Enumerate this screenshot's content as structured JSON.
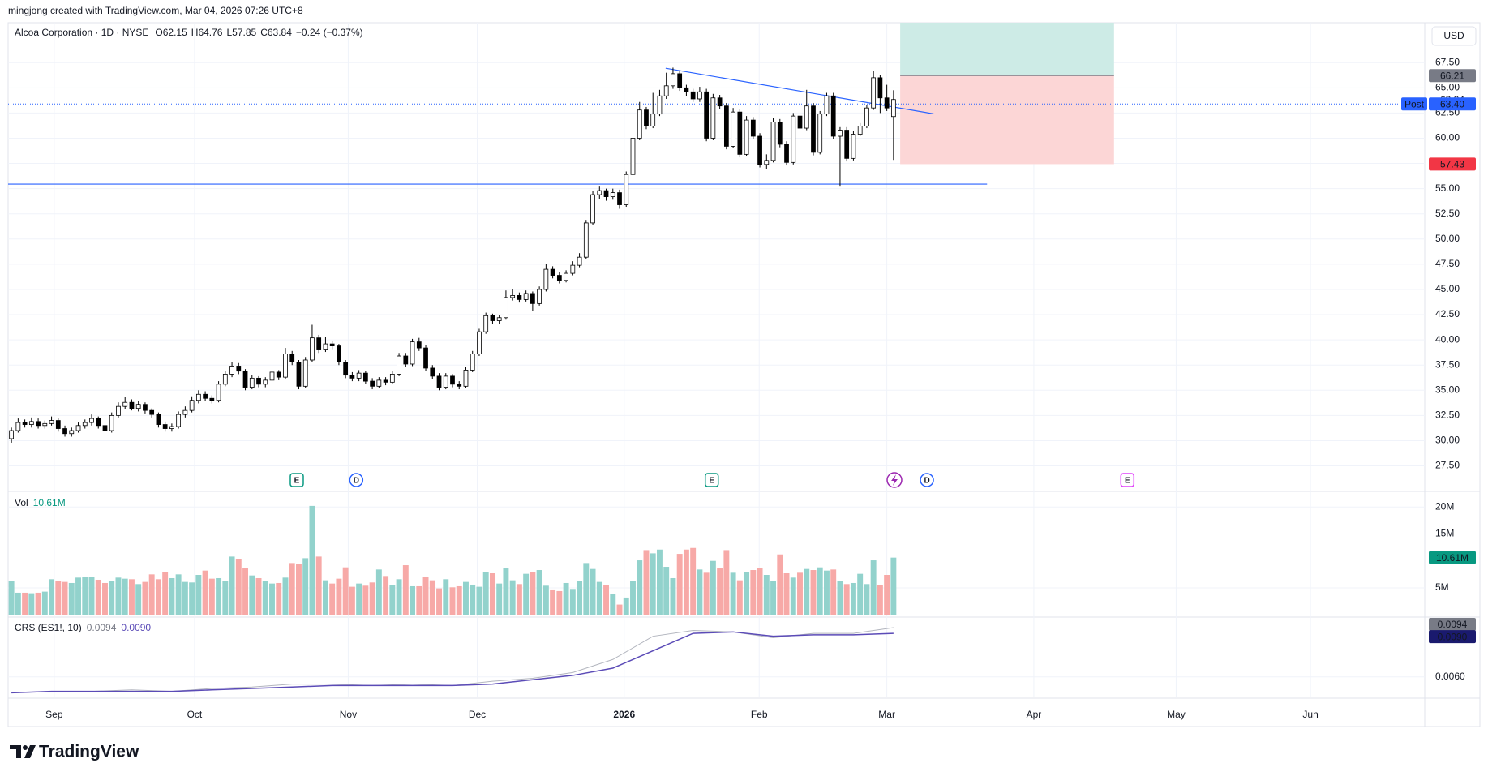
{
  "header": "mingjong created with TradingView.com, Mar 04, 2026 07:26 UTC+8",
  "logo": "TradingView",
  "chart_data": {
    "type": "candlestick",
    "symbol": "Alcoa Corporation · 1D · NYSE",
    "ohlc_prefixes": [
      "O",
      "H",
      "L",
      "C"
    ],
    "change": "−0.24 (−0.37%)",
    "currency": "USD",
    "up_color": "#ffffff",
    "down_color": "#000000",
    "wick_color": "#000000",
    "candles": [
      [
        30.2,
        31.3,
        29.8,
        31.0
      ],
      [
        31.0,
        32.2,
        30.8,
        31.8
      ],
      [
        31.8,
        32.1,
        31.3,
        31.6
      ],
      [
        31.6,
        32.3,
        31.3,
        31.9
      ],
      [
        31.9,
        32.2,
        31.2,
        31.5
      ],
      [
        31.5,
        32.0,
        31.2,
        31.7
      ],
      [
        31.7,
        32.4,
        31.5,
        32.0
      ],
      [
        32.0,
        32.2,
        30.9,
        31.2
      ],
      [
        31.2,
        31.5,
        30.4,
        30.7
      ],
      [
        30.7,
        31.3,
        30.4,
        31.0
      ],
      [
        31.0,
        31.8,
        30.8,
        31.5
      ],
      [
        31.5,
        32.1,
        31.2,
        31.8
      ],
      [
        31.8,
        32.6,
        31.5,
        32.2
      ],
      [
        32.2,
        32.4,
        31.2,
        31.5
      ],
      [
        31.5,
        31.7,
        30.7,
        31.0
      ],
      [
        31.0,
        32.8,
        30.8,
        32.5
      ],
      [
        32.5,
        33.8,
        32.3,
        33.4
      ],
      [
        33.4,
        34.3,
        33.1,
        33.8
      ],
      [
        33.8,
        34.1,
        33.0,
        33.2
      ],
      [
        33.2,
        33.9,
        32.9,
        33.6
      ],
      [
        33.6,
        33.8,
        32.7,
        33.0
      ],
      [
        33.0,
        33.2,
        32.3,
        32.6
      ],
      [
        32.6,
        32.8,
        31.3,
        31.6
      ],
      [
        31.6,
        31.9,
        30.9,
        31.2
      ],
      [
        31.2,
        31.7,
        30.9,
        31.4
      ],
      [
        31.4,
        32.9,
        31.2,
        32.6
      ],
      [
        32.6,
        33.4,
        32.3,
        33.0
      ],
      [
        33.0,
        34.4,
        32.8,
        34.0
      ],
      [
        34.0,
        35.0,
        33.7,
        34.6
      ],
      [
        34.6,
        34.9,
        33.9,
        34.2
      ],
      [
        34.2,
        34.5,
        33.7,
        34.0
      ],
      [
        34.0,
        35.9,
        33.8,
        35.6
      ],
      [
        35.6,
        36.9,
        35.4,
        36.6
      ],
      [
        36.6,
        37.8,
        36.3,
        37.4
      ],
      [
        37.4,
        37.7,
        36.6,
        36.9
      ],
      [
        36.9,
        37.1,
        35.0,
        35.3
      ],
      [
        35.3,
        36.5,
        35.1,
        36.2
      ],
      [
        36.2,
        36.4,
        35.3,
        35.6
      ],
      [
        35.6,
        36.3,
        35.3,
        36.0
      ],
      [
        36.0,
        37.1,
        35.8,
        36.8
      ],
      [
        36.8,
        37.0,
        36.0,
        36.3
      ],
      [
        36.3,
        39.2,
        36.1,
        38.6
      ],
      [
        38.6,
        38.9,
        37.5,
        37.8
      ],
      [
        37.8,
        38.0,
        35.1,
        35.4
      ],
      [
        35.4,
        38.3,
        35.2,
        38.0
      ],
      [
        38.0,
        41.5,
        37.8,
        40.2
      ],
      [
        40.2,
        40.5,
        38.7,
        39.0
      ],
      [
        39.0,
        40.3,
        38.8,
        39.6
      ],
      [
        39.6,
        39.9,
        39.0,
        39.4
      ],
      [
        39.4,
        39.6,
        37.5,
        37.8
      ],
      [
        37.8,
        38.0,
        36.2,
        36.5
      ],
      [
        36.5,
        36.8,
        35.9,
        36.2
      ],
      [
        36.2,
        37.0,
        35.9,
        36.7
      ],
      [
        36.7,
        36.9,
        35.6,
        35.9
      ],
      [
        35.9,
        36.2,
        35.1,
        35.4
      ],
      [
        35.4,
        36.3,
        35.2,
        36.0
      ],
      [
        36.0,
        36.3,
        35.5,
        35.8
      ],
      [
        35.8,
        36.9,
        35.6,
        36.6
      ],
      [
        36.6,
        38.7,
        36.4,
        38.4
      ],
      [
        38.4,
        38.7,
        37.3,
        37.6
      ],
      [
        37.6,
        40.1,
        37.4,
        39.8
      ],
      [
        39.8,
        40.2,
        38.9,
        39.2
      ],
      [
        39.2,
        39.5,
        36.9,
        37.2
      ],
      [
        37.2,
        37.5,
        36.1,
        36.4
      ],
      [
        36.4,
        36.7,
        35.0,
        35.3
      ],
      [
        35.3,
        36.7,
        35.1,
        36.4
      ],
      [
        36.4,
        36.6,
        35.3,
        35.6
      ],
      [
        35.6,
        35.9,
        35.1,
        35.4
      ],
      [
        35.4,
        37.3,
        35.2,
        37.0
      ],
      [
        37.0,
        38.9,
        36.8,
        38.6
      ],
      [
        38.6,
        41.1,
        38.4,
        40.8
      ],
      [
        40.8,
        42.7,
        40.6,
        42.4
      ],
      [
        42.4,
        42.6,
        41.6,
        41.9
      ],
      [
        41.9,
        42.5,
        41.6,
        42.2
      ],
      [
        42.2,
        44.9,
        42.0,
        44.2
      ],
      [
        44.2,
        45.0,
        43.9,
        44.4
      ],
      [
        44.4,
        44.7,
        43.7,
        44.0
      ],
      [
        44.0,
        44.9,
        43.8,
        44.6
      ],
      [
        44.6,
        44.8,
        42.9,
        43.6
      ],
      [
        43.6,
        45.3,
        43.4,
        45.0
      ],
      [
        45.0,
        47.5,
        44.8,
        47.0
      ],
      [
        47.0,
        47.3,
        46.1,
        46.4
      ],
      [
        46.4,
        46.7,
        45.6,
        45.9
      ],
      [
        45.9,
        46.9,
        45.7,
        46.6
      ],
      [
        46.6,
        47.8,
        46.4,
        47.4
      ],
      [
        47.4,
        48.6,
        47.2,
        48.2
      ],
      [
        48.2,
        51.9,
        48.0,
        51.6
      ],
      [
        51.6,
        54.8,
        51.4,
        54.4
      ],
      [
        54.4,
        55.2,
        54.0,
        54.8
      ],
      [
        54.8,
        55.0,
        53.8,
        54.2
      ],
      [
        54.2,
        55.0,
        53.9,
        54.6
      ],
      [
        54.6,
        54.9,
        53.0,
        53.4
      ],
      [
        53.4,
        56.7,
        53.2,
        56.4
      ],
      [
        56.4,
        60.3,
        56.2,
        60.0
      ],
      [
        60.0,
        63.6,
        59.8,
        62.8
      ],
      [
        62.8,
        63.1,
        60.9,
        61.2
      ],
      [
        61.2,
        64.5,
        61.0,
        62.4
      ],
      [
        62.4,
        64.8,
        62.2,
        64.2
      ],
      [
        64.2,
        66.5,
        63.9,
        65.2
      ],
      [
        65.2,
        67.0,
        64.9,
        66.4
      ],
      [
        66.4,
        66.7,
        64.7,
        65.0
      ],
      [
        65.0,
        65.3,
        64.2,
        64.6
      ],
      [
        64.6,
        64.9,
        63.6,
        63.9
      ],
      [
        63.9,
        65.1,
        63.6,
        64.6
      ],
      [
        64.6,
        64.9,
        59.7,
        60.0
      ],
      [
        60.0,
        64.4,
        59.8,
        64.0
      ],
      [
        64.0,
        64.3,
        62.9,
        63.2
      ],
      [
        63.2,
        63.5,
        58.9,
        59.2
      ],
      [
        59.2,
        63.0,
        59.0,
        62.6
      ],
      [
        62.6,
        62.9,
        58.1,
        58.4
      ],
      [
        58.4,
        62.2,
        58.2,
        61.8
      ],
      [
        61.8,
        62.1,
        59.9,
        60.2
      ],
      [
        60.2,
        60.5,
        57.1,
        57.4
      ],
      [
        57.4,
        58.4,
        56.9,
        57.8
      ],
      [
        57.8,
        62.0,
        57.6,
        61.6
      ],
      [
        61.6,
        61.9,
        59.1,
        59.4
      ],
      [
        59.4,
        59.7,
        57.3,
        57.6
      ],
      [
        57.6,
        62.5,
        57.4,
        62.2
      ],
      [
        62.2,
        62.5,
        60.7,
        61.0
      ],
      [
        61.0,
        64.8,
        60.8,
        63.2
      ],
      [
        63.2,
        63.5,
        58.3,
        58.6
      ],
      [
        58.6,
        62.7,
        58.4,
        62.4
      ],
      [
        62.4,
        64.5,
        62.2,
        64.2
      ],
      [
        64.2,
        64.5,
        59.9,
        60.2
      ],
      [
        60.2,
        61.1,
        55.2,
        60.8
      ],
      [
        60.8,
        61.1,
        57.7,
        58.0
      ],
      [
        58.0,
        60.7,
        57.8,
        60.4
      ],
      [
        60.4,
        61.5,
        60.2,
        61.2
      ],
      [
        61.2,
        63.3,
        61.0,
        63.0
      ],
      [
        63.0,
        66.7,
        62.8,
        66.0
      ],
      [
        66.0,
        66.3,
        62.5,
        64.0
      ],
      [
        64.0,
        65.3,
        62.7,
        63.0
      ],
      [
        62.15,
        64.76,
        57.85,
        63.84
      ]
    ],
    "xlim": [
      -0.5,
      211.5
    ],
    "xticks": [
      {
        "value": 6.4,
        "label": "Sep"
      },
      {
        "value": 27.4,
        "label": "Oct"
      },
      {
        "value": 50.4,
        "label": "Nov"
      },
      {
        "value": 69.7,
        "label": "Dec"
      },
      {
        "value": 91.7,
        "label": "2026"
      },
      {
        "value": 111.9,
        "label": "Feb"
      },
      {
        "value": 131,
        "label": "Mar"
      },
      {
        "value": 153,
        "label": "Apr"
      },
      {
        "value": 174.3,
        "label": "May"
      },
      {
        "value": 194.4,
        "label": "Jun"
      }
    ],
    "ylim": [
      25.05,
      71.46
    ],
    "yticks": [
      {
        "value": 27.5,
        "label": "27.50"
      },
      {
        "value": 30,
        "label": "30.00"
      },
      {
        "value": 32.5,
        "label": "32.50"
      },
      {
        "value": 35,
        "label": "35.00"
      },
      {
        "value": 37.5,
        "label": "37.50"
      },
      {
        "value": 40,
        "label": "40.00"
      },
      {
        "value": 42.5,
        "label": "42.50"
      },
      {
        "value": 45,
        "label": "45.00"
      },
      {
        "value": 47.5,
        "label": "47.50"
      },
      {
        "value": 50,
        "label": "50.00"
      },
      {
        "value": 52.5,
        "label": "52.50"
      },
      {
        "value": 55,
        "label": "55.00"
      },
      {
        "value": 57.5,
        "label": "57.50"
      },
      {
        "value": 60,
        "label": "60.00"
      },
      {
        "value": 62.5,
        "label": "62.50"
      },
      {
        "value": 65,
        "label": "65.00"
      },
      {
        "value": 67.5,
        "label": "67.50"
      }
    ],
    "grid": true,
    "post": {
      "label": "Post",
      "price": {
        "value": 63.4,
        "label": "63.40"
      },
      "color": "#2962ff"
    },
    "position": {
      "entry": 66.21,
      "stop": 57.43,
      "target": 71.6,
      "x": [
        133,
        165
      ],
      "profit_color": "#cdebe6",
      "loss_color": "#fcd6d6",
      "stop_color": "#f23645",
      "entry_color": "#787b86"
    },
    "lines": [
      {
        "x": [
          97.9,
          138
        ],
        "y": [
          66.94,
          62.42
        ],
        "color": "#2962ff"
      },
      {
        "x": [
          -0.5,
          146
        ],
        "y": [
          55.45,
          55.45
        ],
        "color": "#2962ff"
      }
    ],
    "events": [
      {
        "x": 42.7,
        "label": "E",
        "color": "#089981"
      },
      {
        "x": 51.6,
        "label": "D",
        "color": "#2962ff"
      },
      {
        "x": 104.8,
        "label": "E",
        "color": "#089981"
      },
      {
        "x": 137,
        "label": "D",
        "color": "#2962ff"
      },
      {
        "x": 167,
        "label": "E",
        "color": "#e040fb"
      }
    ],
    "volume": {
      "name": "Vol",
      "up_color": "#92d2cc",
      "down_color": "#f7a9a7",
      "last_label": "10.61M",
      "values": [
        6.2,
        4.1,
        4.1,
        4.0,
        4.1,
        4.3,
        6.6,
        6.3,
        6.1,
        5.9,
        6.9,
        7.1,
        7.0,
        6.5,
        5.9,
        6.3,
        6.9,
        6.7,
        6.6,
        5.7,
        6.1,
        7.5,
        6.6,
        7.9,
        6.8,
        7.5,
        6.1,
        6.0,
        7.4,
        8.2,
        6.7,
        6.8,
        6.2,
        10.8,
        10.3,
        8.7,
        7.3,
        6.8,
        6.3,
        5.8,
        5.9,
        6.9,
        9.6,
        9.4,
        10.5,
        20.2,
        10.8,
        6.4,
        5.8,
        6.7,
        8.8,
        5.2,
        5.8,
        5.4,
        6.0,
        8.4,
        7.2,
        5.5,
        6.6,
        9.2,
        5.3,
        5.3,
        7.1,
        6.4,
        4.9,
        6.6,
        5.1,
        5.3,
        6.1,
        5.6,
        5.2,
        8.0,
        7.7,
        5.8,
        8.6,
        6.4,
        5.7,
        7.6,
        8.0,
        8.3,
        5.4,
        4.7,
        4.4,
        5.9,
        4.8,
        6.3,
        9.6,
        8.5,
        6.1,
        5.5,
        3.8,
        1.9,
        3.2,
        6.2,
        10.1,
        12.0,
        11.4,
        12.1,
        8.9,
        6.8,
        11.3,
        12.1,
        12.4,
        8.4,
        7.8,
        10.0,
        8.6,
        12.0,
        7.8,
        6.4,
        7.9,
        8.3,
        8.7,
        7.4,
        6.2,
        11.2,
        7.7,
        6.9,
        7.8,
        8.5,
        8.3,
        8.8,
        8.2,
        8.4,
        6.2,
        5.7,
        5.9,
        7.6,
        5.7,
        10.1,
        5.5,
        7.4,
        10.61
      ],
      "ylim": [
        -0.27,
        22.74
      ],
      "yticks": [
        {
          "value": 5,
          "label": "5M"
        },
        {
          "value": 15,
          "label": "15M"
        },
        {
          "value": 20,
          "label": "20M"
        }
      ]
    },
    "crs": {
      "name": "CRS (ES1!, 10)",
      "x": [
        0,
        6,
        12,
        18,
        24,
        30,
        36,
        42,
        48,
        54,
        60,
        66,
        72,
        78,
        84,
        90,
        96,
        102,
        108,
        114,
        120,
        126,
        132
      ],
      "series": [
        {
          "color": "#b2b5be",
          "last_label": "0.0094",
          "values": [
            0.0049,
            0.005,
            0.005,
            0.0051,
            0.005,
            0.0052,
            0.0053,
            0.0055,
            0.0055,
            0.0054,
            0.0055,
            0.0054,
            0.0057,
            0.0059,
            0.0063,
            0.0072,
            0.0088,
            0.0092,
            0.0091,
            0.0087,
            0.009,
            0.009,
            0.0094
          ]
        },
        {
          "color": "#5b4bb7",
          "last_label": "0.0090",
          "values": [
            0.0049,
            0.005,
            0.005,
            0.005,
            0.005,
            0.0051,
            0.0052,
            0.0053,
            0.0054,
            0.0054,
            0.0054,
            0.0054,
            0.0055,
            0.0058,
            0.0061,
            0.0066,
            0.0078,
            0.009,
            0.0091,
            0.0088,
            0.0089,
            0.0089,
            0.009
          ]
        }
      ],
      "ylim": [
        0.004585,
        0.010069
      ],
      "yticks": [
        {
          "value": 0.006,
          "label": "0.0060"
        }
      ]
    }
  }
}
